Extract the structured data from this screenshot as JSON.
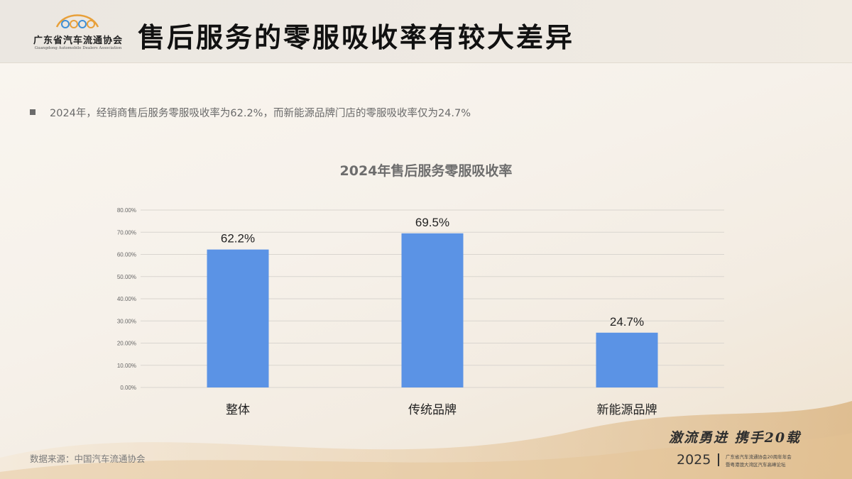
{
  "header": {
    "logo_cn": "广东省汽车流通协会",
    "logo_en": "Guangdong Automobile Dealers Association",
    "title": "售后服务的零服吸收率有较大差异"
  },
  "bullet": {
    "text": "2024年，经销商售后服务零服吸收率为62.2%，而新能源品牌门店的零服吸收率仅为24.7%"
  },
  "footer": {
    "source": "数据来源：中国汽车流通协会",
    "slogan": "激流勇进  携手20载",
    "year": "2025",
    "event_line1": "广东省汽车流通协会20周年年会",
    "event_line2": "暨粤港澳大湾区汽车高峰论坛"
  },
  "colors": {
    "bar": "#5b93e5",
    "grid": "#d9d5cf",
    "logo_mark": "#e8a03a"
  },
  "chart_data": {
    "type": "bar",
    "title": "2024年售后服务零服吸收率",
    "categories": [
      "整体",
      "传统品牌",
      "新能源品牌"
    ],
    "values": [
      62.2,
      69.5,
      24.7
    ],
    "data_labels": [
      "62.2%",
      "69.5%",
      "24.7%"
    ],
    "ylim": [
      0,
      80
    ],
    "yticks": [
      0,
      10,
      20,
      30,
      40,
      50,
      60,
      70,
      80
    ],
    "ytick_labels": [
      "0.00%",
      "10.00%",
      "20.00%",
      "30.00%",
      "40.00%",
      "50.00%",
      "60.00%",
      "70.00%",
      "80.00%"
    ],
    "xlabel": "",
    "ylabel": "",
    "grid": true,
    "legend": false
  }
}
